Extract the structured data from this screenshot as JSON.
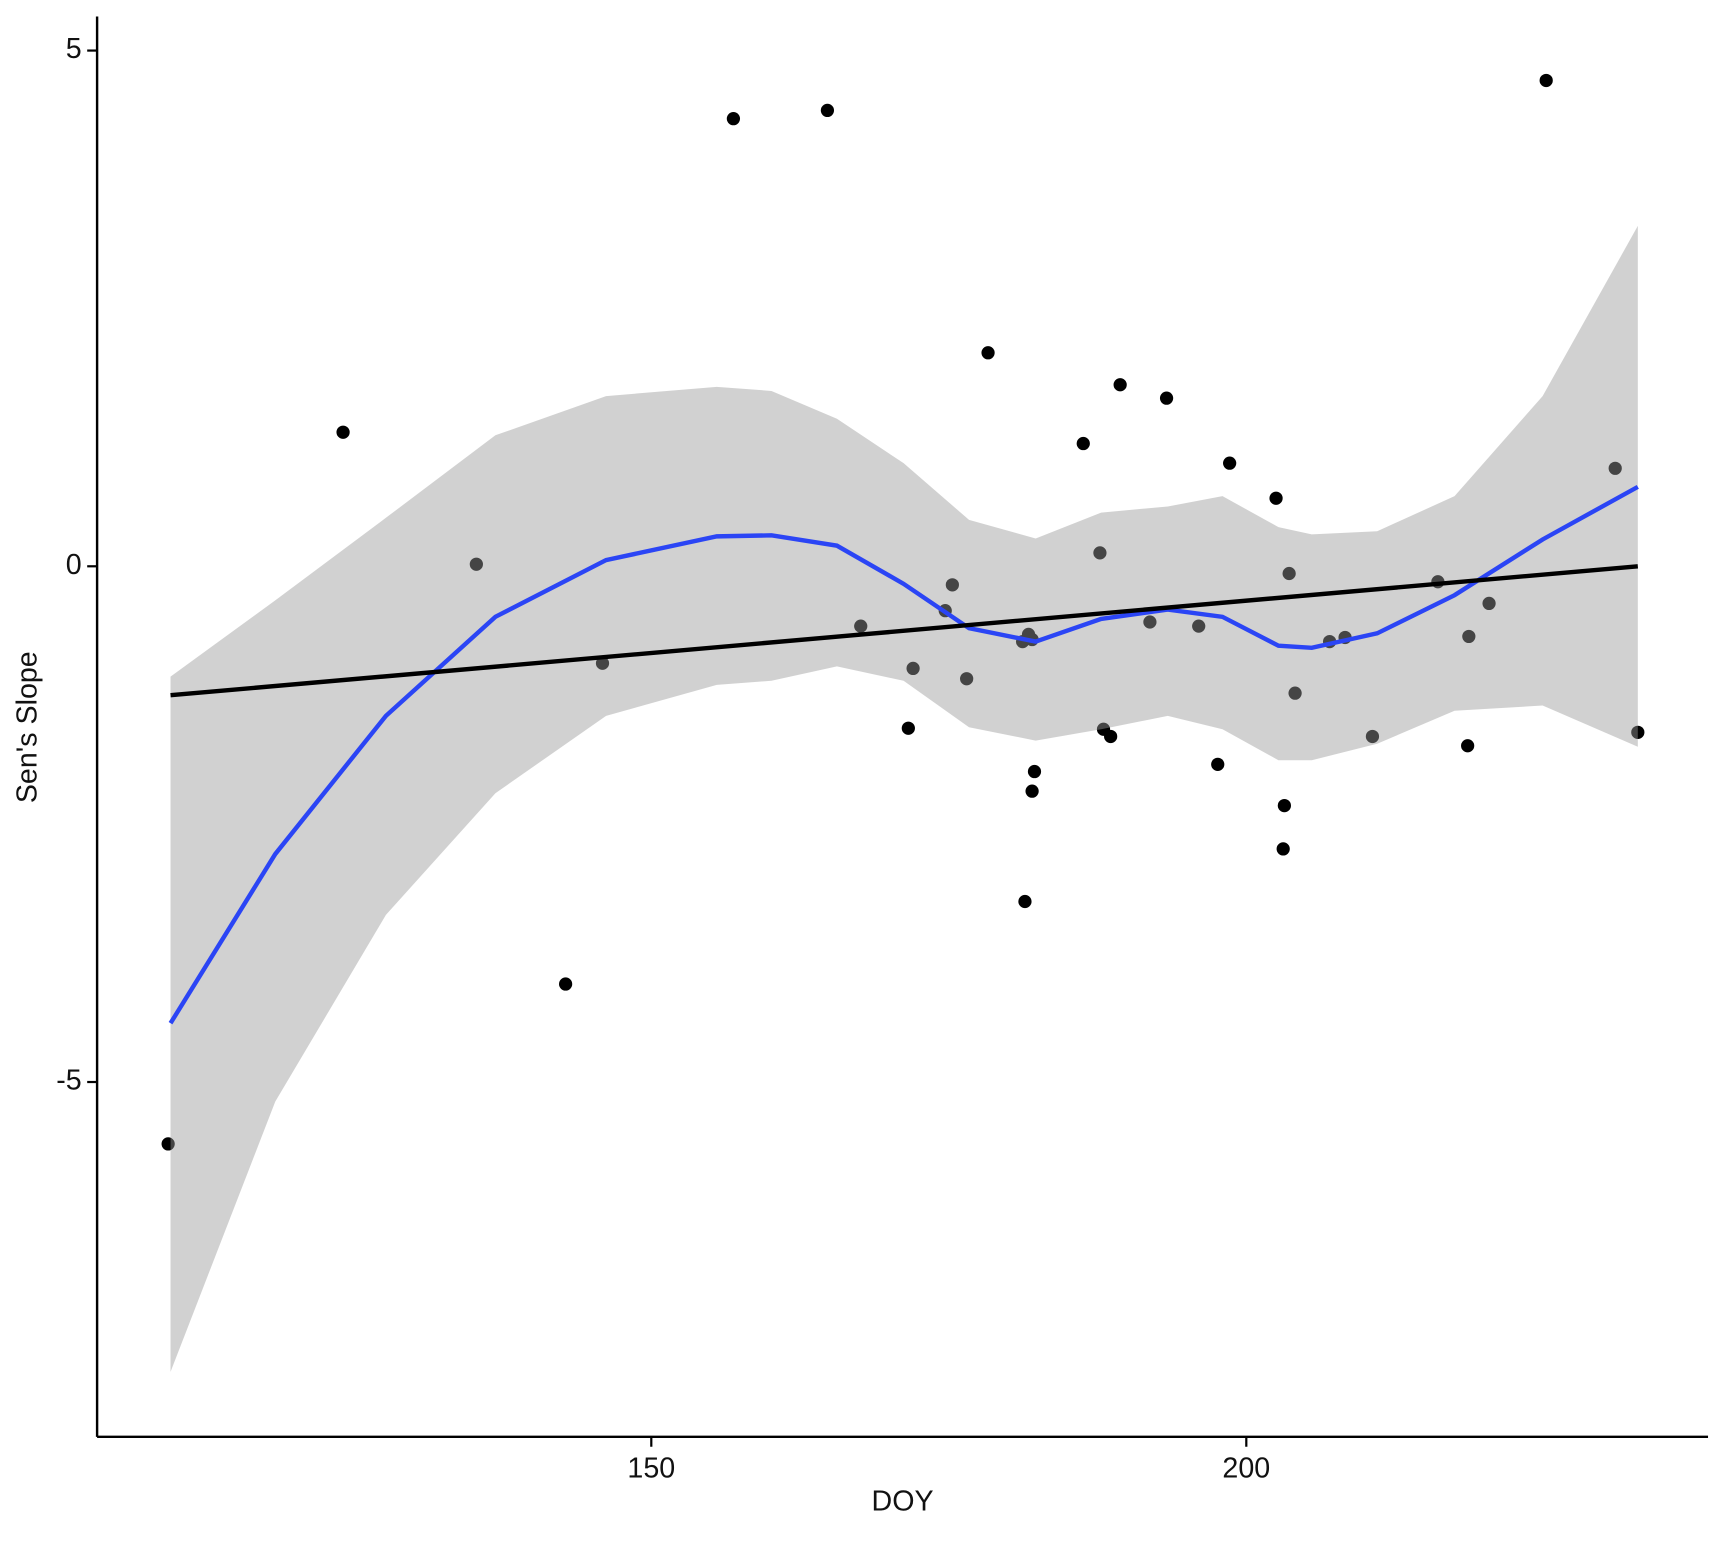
{
  "chart_data": {
    "type": "scatter",
    "x_label": "DOY",
    "y_label": "Sen's Slope",
    "xlim": [
      103.43,
      238.8
    ],
    "ylim": [
      -8.44,
      5.33
    ],
    "xticks": [
      150,
      200
    ],
    "yticks": [
      -5,
      0,
      5
    ],
    "grid": false,
    "series": [
      {
        "type": "scatter",
        "color": "#000000",
        "x": [
          109.4,
          124.1,
          135.3,
          142.8,
          145.9,
          156.9,
          164.8,
          167.6,
          171.6,
          172.0,
          174.7,
          175.3,
          176.5,
          178.3,
          181.2,
          181.4,
          181.7,
          182.0,
          182.0,
          182.2,
          186.3,
          187.7,
          188.0,
          188.6,
          189.4,
          191.9,
          193.3,
          196.0,
          197.6,
          198.6,
          202.5,
          203.1,
          203.2,
          203.6,
          204.1,
          207.0,
          208.3,
          210.6,
          216.1,
          218.6,
          218.7,
          220.4,
          225.2,
          231.0,
          232.9
        ],
        "values": [
          -5.6,
          1.3,
          0.02,
          -4.05,
          -0.94,
          4.34,
          4.42,
          -0.58,
          -1.57,
          -0.99,
          -0.43,
          -0.18,
          -1.09,
          2.07,
          -0.73,
          -3.25,
          -0.66,
          -0.71,
          -2.18,
          -1.99,
          1.19,
          0.13,
          -1.58,
          -1.65,
          1.76,
          -0.54,
          1.63,
          -0.58,
          -1.92,
          1.0,
          0.66,
          -2.74,
          -2.32,
          -0.07,
          -1.23,
          -0.73,
          -0.69,
          -1.65,
          -0.15,
          -1.74,
          -0.68,
          -0.36,
          4.71,
          0.95,
          -1.61
        ]
      },
      {
        "type": "smooth",
        "color": "#2b45f5",
        "band_color": "#999999",
        "x": [
          109.6,
          118.4,
          127.7,
          136.9,
          146.2,
          155.5,
          160.1,
          165.6,
          171.2,
          176.7,
          182.3,
          187.8,
          193.4,
          198.0,
          202.7,
          205.5,
          211.0,
          217.5,
          224.9,
          232.9
        ],
        "values": [
          -4.43,
          -2.79,
          -1.45,
          -0.49,
          0.06,
          0.29,
          0.3,
          0.2,
          -0.17,
          -0.6,
          -0.73,
          -0.51,
          -0.42,
          -0.49,
          -0.77,
          -0.79,
          -0.65,
          -0.28,
          0.26,
          0.77
        ],
        "upper": [
          -1.07,
          -0.33,
          0.47,
          1.27,
          1.65,
          1.74,
          1.7,
          1.43,
          1.0,
          0.45,
          0.27,
          0.52,
          0.58,
          0.68,
          0.38,
          0.31,
          0.34,
          0.68,
          1.65,
          3.3
        ],
        "lower": [
          -7.81,
          -5.19,
          -3.38,
          -2.2,
          -1.45,
          -1.15,
          -1.11,
          -0.97,
          -1.11,
          -1.56,
          -1.69,
          -1.58,
          -1.45,
          -1.58,
          -1.88,
          -1.88,
          -1.72,
          -1.4,
          -1.35,
          -1.75
        ]
      },
      {
        "type": "line",
        "color": "#000000",
        "x": [
          109.6,
          232.9
        ],
        "values": [
          -1.25,
          0.0
        ]
      }
    ]
  }
}
